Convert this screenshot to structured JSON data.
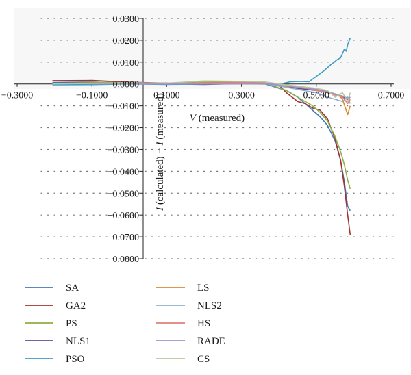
{
  "chart_data": {
    "type": "line",
    "title": "",
    "xlabel_var": "V",
    "xlabel_rest": " (measured)",
    "ylabel_var1": "I",
    "ylabel_mid": " (calculated) − ",
    "ylabel_var2": "I",
    "ylabel_rest": " (measured)",
    "xlim": [
      -0.3,
      0.7
    ],
    "ylim": [
      -0.08,
      0.03
    ],
    "xticks": [
      -0.3,
      -0.1,
      0.1,
      0.3,
      0.5,
      0.7
    ],
    "xtick_labels": [
      "−0.3000",
      "−0.1000",
      "0.1000",
      "0.3000",
      "0.5000",
      "0.7000"
    ],
    "yticks": [
      0.03,
      0.02,
      0.01,
      0.0,
      -0.01,
      -0.02,
      -0.03,
      -0.04,
      -0.05,
      -0.06,
      -0.07,
      -0.08
    ],
    "ytick_labels": [
      "0.0300",
      "0.0200",
      "0.0100",
      "0.0000",
      "−0.0100",
      "−0.0200",
      "−0.0300",
      "−0.0400",
      "−0.0500",
      "−0.0600",
      "−0.0700",
      "−0.0800"
    ],
    "grid": "dotted horizontal",
    "legend_position": "bottom",
    "series": [
      {
        "name": "SA",
        "color": "#3f78b4",
        "x": [
          -0.2057,
          -0.1,
          0.0,
          0.1,
          0.2,
          0.3,
          0.36,
          0.42,
          0.45,
          0.47,
          0.49,
          0.51,
          0.53,
          0.55,
          0.565,
          0.575,
          0.5838,
          0.5906
        ],
        "y": [
          0.0007,
          0.0009,
          0.0005,
          0.0004,
          0.0003,
          0.0003,
          0.0002,
          -0.003,
          -0.006,
          -0.009,
          -0.012,
          -0.015,
          -0.019,
          -0.026,
          -0.035,
          -0.045,
          -0.056,
          -0.058
        ]
      },
      {
        "name": "GA2",
        "color": "#a33333",
        "x": [
          -0.2057,
          -0.1,
          0.0,
          0.1,
          0.2,
          0.3,
          0.36,
          0.4,
          0.42,
          0.45,
          0.47,
          0.49,
          0.51,
          0.53,
          0.55,
          0.565,
          0.575,
          0.5838,
          0.5906
        ],
        "y": [
          0.0015,
          0.0016,
          0.0008,
          0.0004,
          0.0002,
          0.0003,
          0.0001,
          -0.0005,
          -0.004,
          -0.008,
          -0.009,
          -0.011,
          -0.012,
          -0.016,
          -0.025,
          -0.035,
          -0.047,
          -0.06,
          -0.069
        ]
      },
      {
        "name": "PS",
        "color": "#8fae45",
        "x": [
          -0.2057,
          -0.1,
          0.0,
          0.1,
          0.2,
          0.3,
          0.36,
          0.42,
          0.45,
          0.47,
          0.49,
          0.51,
          0.53,
          0.55,
          0.565,
          0.575,
          0.5838,
          0.5906
        ],
        "y": [
          0.0,
          0.0008,
          0.0006,
          0.0003,
          0.0012,
          0.0009,
          0.0007,
          -0.003,
          -0.006,
          -0.008,
          -0.01,
          -0.013,
          -0.017,
          -0.024,
          -0.031,
          -0.037,
          -0.044,
          -0.048
        ]
      },
      {
        "name": "NLS1",
        "color": "#6a4a9a",
        "x": [
          -0.2057,
          -0.1,
          0.0,
          0.1,
          0.2,
          0.3,
          0.36,
          0.42,
          0.45,
          0.5,
          0.53,
          0.55,
          0.57,
          0.5838,
          0.5906
        ],
        "y": [
          0.0003,
          0.0004,
          0.0002,
          0.0,
          -0.0002,
          0.0002,
          0.0003,
          -0.001,
          -0.002,
          -0.003,
          -0.004,
          -0.005,
          -0.006,
          -0.007,
          -0.006
        ]
      },
      {
        "name": "PSO",
        "color": "#3b9cc4",
        "x": [
          -0.2057,
          -0.1,
          0.0,
          0.1,
          0.2,
          0.3,
          0.36,
          0.4,
          0.43,
          0.46,
          0.48,
          0.5,
          0.52,
          0.54,
          0.555,
          0.565,
          0.575,
          0.58,
          0.5838,
          0.5906
        ],
        "y": [
          -0.0004,
          -0.0003,
          0.0,
          -0.0002,
          0.0,
          0.0002,
          0.0005,
          -0.0002,
          0.001,
          0.0012,
          0.001,
          0.0035,
          0.006,
          0.009,
          0.011,
          0.012,
          0.016,
          0.015,
          0.018,
          0.021
        ]
      },
      {
        "name": "LS",
        "color": "#d98a2a",
        "x": [
          -0.2057,
          -0.1,
          0.0,
          0.1,
          0.2,
          0.3,
          0.36,
          0.42,
          0.45,
          0.47,
          0.5,
          0.52,
          0.54,
          0.55,
          0.56,
          0.57,
          0.5838,
          0.5906
        ],
        "y": [
          0.0002,
          0.0003,
          0.0004,
          0.0002,
          0.0006,
          0.0008,
          0.0005,
          -0.001,
          -0.0015,
          -0.002,
          -0.002,
          -0.003,
          -0.004,
          -0.006,
          -0.005,
          -0.007,
          -0.014,
          -0.01
        ]
      },
      {
        "name": "NLS2",
        "color": "#8fb0cf",
        "x": [
          -0.2057,
          -0.1,
          0.0,
          0.1,
          0.2,
          0.3,
          0.36,
          0.42,
          0.45,
          0.5,
          0.53,
          0.55,
          0.57,
          0.5838,
          0.5906
        ],
        "y": [
          0.0,
          0.0004,
          0.0003,
          0.0001,
          0.0,
          0.0003,
          0.0002,
          -0.0015,
          -0.0025,
          -0.004,
          -0.006,
          -0.007,
          -0.008,
          -0.006,
          -0.009
        ]
      },
      {
        "name": "HS",
        "color": "#e0807a",
        "x": [
          -0.2057,
          -0.1,
          0.0,
          0.1,
          0.2,
          0.3,
          0.36,
          0.42,
          0.45,
          0.5,
          0.53,
          0.55,
          0.57,
          0.5838,
          0.5906
        ],
        "y": [
          0.0001,
          0.0002,
          0.0003,
          0.0002,
          0.0004,
          0.0006,
          0.0007,
          -0.0005,
          -0.001,
          -0.003,
          -0.004,
          -0.005,
          -0.006,
          -0.009,
          -0.007
        ]
      },
      {
        "name": "RADE",
        "color": "#9a94d0",
        "x": [
          -0.2057,
          -0.1,
          0.0,
          0.1,
          0.2,
          0.3,
          0.36,
          0.42,
          0.45,
          0.5,
          0.53,
          0.55,
          0.57,
          0.5838,
          0.5906
        ],
        "y": [
          0.0002,
          0.0001,
          0.0,
          -0.0001,
          0.0001,
          0.0001,
          0.0002,
          -0.0008,
          -0.0015,
          -0.0025,
          -0.0035,
          -0.0045,
          -0.0055,
          -0.0065,
          -0.006
        ]
      },
      {
        "name": "CS",
        "color": "#b7c99a",
        "x": [
          -0.2057,
          -0.1,
          0.0,
          0.1,
          0.2,
          0.3,
          0.36,
          0.42,
          0.45,
          0.5,
          0.53,
          0.55,
          0.57,
          0.5838,
          0.5906
        ],
        "y": [
          0.0,
          0.0003,
          0.0005,
          0.0004,
          0.0014,
          0.0012,
          0.001,
          -0.0005,
          -0.001,
          -0.002,
          -0.003,
          -0.006,
          -0.004,
          -0.008,
          -0.004
        ]
      }
    ]
  }
}
